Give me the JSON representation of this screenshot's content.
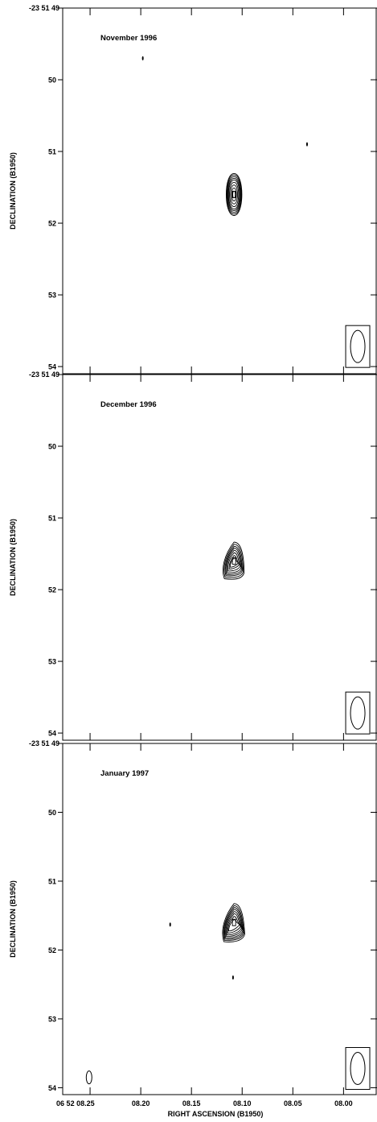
{
  "chart_data": [
    {
      "type": "contour",
      "annotation": "November 1996",
      "ylabel": "DECLINATION (B1950)",
      "y_origin_label": "-23 51 49",
      "y_tick_labels": [
        "50",
        "51",
        "52",
        "53",
        "54"
      ],
      "y_ticks": [
        49,
        50,
        51,
        52,
        53,
        54
      ],
      "ylim": [
        54.1,
        49
      ],
      "x_ticks": [
        8.25,
        8.2,
        8.15,
        8.1,
        8.05,
        8.0
      ],
      "xlim": [
        8.277,
        7.967
      ],
      "source": {
        "ra": 8.108,
        "dec": 51.6,
        "levels": [
          0.62,
          0.58,
          0.53,
          0.48,
          0.43,
          0.36,
          0.28,
          0.19,
          0.1
        ],
        "shape": "symmetric"
      },
      "noise_features": [
        {
          "ra": 8.198,
          "dec": 49.7
        },
        {
          "ra": 8.036,
          "dec": 50.9
        }
      ],
      "beam": {
        "ra": 7.986,
        "dec": 53.72
      }
    },
    {
      "type": "contour",
      "annotation": "December 1996",
      "ylabel": "DECLINATION (B1950)",
      "y_origin_label": "-23 51 49",
      "y_tick_labels": [
        "50",
        "51",
        "52",
        "53",
        "54"
      ],
      "y_ticks": [
        49,
        50,
        51,
        52,
        53,
        54
      ],
      "ylim": [
        54.1,
        49
      ],
      "x_ticks": [
        8.25,
        8.2,
        8.15,
        8.1,
        8.05,
        8.0
      ],
      "xlim": [
        8.277,
        7.967
      ],
      "source": {
        "ra": 8.108,
        "dec": 51.6,
        "levels": [
          0.62,
          0.55,
          0.48,
          0.42,
          0.35,
          0.27,
          0.18,
          0.1
        ],
        "shape": "tail"
      },
      "noise_features": [],
      "beam": {
        "ra": 7.986,
        "dec": 53.72
      }
    },
    {
      "type": "contour",
      "annotation": "January 1997",
      "xlabel": "RIGHT ASCENSION (B1950)",
      "ylabel": "DECLINATION (B1950)",
      "y_origin_label": "-23 51 49",
      "y_tick_labels": [
        "50",
        "51",
        "52",
        "53",
        "54"
      ],
      "y_ticks": [
        49,
        50,
        51,
        52,
        53,
        54
      ],
      "ylim": [
        54.1,
        49
      ],
      "x_tick_labels": [
        "06 52 08.25",
        "08.20",
        "08.15",
        "08.10",
        "08.05",
        "08.00"
      ],
      "x_ticks": [
        8.25,
        8.2,
        8.15,
        8.1,
        8.05,
        8.0
      ],
      "xlim": [
        8.277,
        7.967
      ],
      "source": {
        "ra": 8.108,
        "dec": 51.6,
        "levels": [
          0.62,
          0.55,
          0.49,
          0.43,
          0.36,
          0.29,
          0.2,
          0.1
        ],
        "shape": "broad"
      },
      "noise_features": [
        {
          "ra": 8.171,
          "dec": 51.63
        },
        {
          "ra": 8.109,
          "dec": 52.4
        }
      ],
      "extra_feature": {
        "ra": 8.251,
        "dec": 53.85
      },
      "beam": {
        "ra": 7.986,
        "dec": 53.72
      }
    }
  ]
}
